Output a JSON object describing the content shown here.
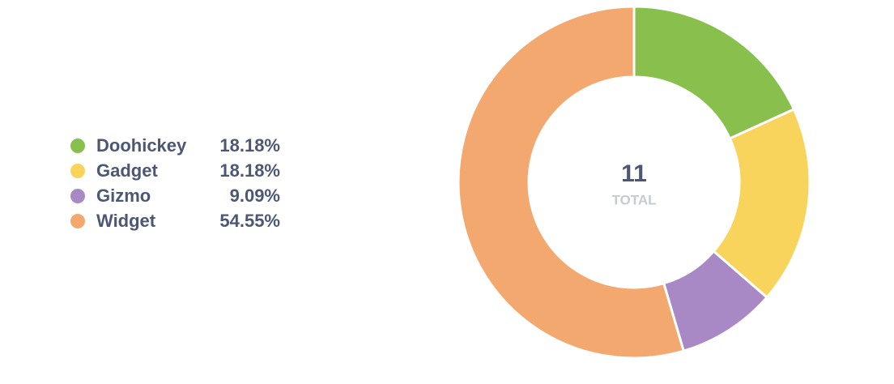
{
  "chart_data": {
    "type": "donut",
    "categories": [
      "Doohickey",
      "Gadget",
      "Gizmo",
      "Widget"
    ],
    "values": [
      18.18,
      18.18,
      9.09,
      54.55
    ],
    "value_labels": [
      "18.18%",
      "18.18%",
      "9.09%",
      "54.55%"
    ],
    "colors": [
      "#88bf4d",
      "#f9d45c",
      "#a989c5",
      "#f2a86f"
    ],
    "total": 11,
    "total_label": "TOTAL",
    "legend": "left"
  }
}
